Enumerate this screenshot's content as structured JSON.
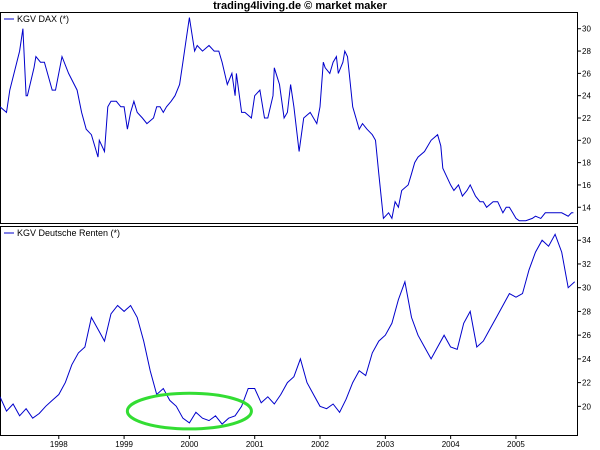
{
  "title": "trading4living.de © market maker",
  "colors": {
    "series_line": "#0000cc",
    "frame": "#000000",
    "highlight": "#33dd33",
    "background": "#ffffff"
  },
  "chart_data": [
    {
      "type": "line",
      "name": "top-panel",
      "legend": "KGV DAX (*)",
      "legend_position": "top-left",
      "ylim": [
        12.5,
        31.5
      ],
      "yticks": [
        14,
        16,
        18,
        20,
        22,
        24,
        26,
        28,
        30
      ],
      "xlim": [
        1997.1,
        2005.95
      ],
      "grid": false,
      "series": [
        {
          "x": [
            1997.1,
            1997.2,
            1997.25,
            1997.4,
            1997.45,
            1997.5,
            1997.52,
            1997.62,
            1997.65,
            1997.72,
            1997.78,
            1997.9,
            1997.95,
            1998.05,
            1998.15,
            1998.28,
            1998.35,
            1998.42,
            1998.5,
            1998.55,
            1998.6,
            1998.62,
            1998.7,
            1998.75,
            1998.8,
            1998.88,
            1998.95,
            1999.0,
            1999.05,
            1999.1,
            1999.15,
            1999.2,
            1999.28,
            1999.35,
            1999.45,
            1999.5,
            1999.55,
            1999.6,
            1999.65,
            1999.72,
            1999.78,
            1999.85,
            1999.9,
            1999.95,
            2000.0,
            2000.08,
            2000.12,
            2000.2,
            2000.3,
            2000.38,
            2000.45,
            2000.5,
            2000.58,
            2000.65,
            2000.7,
            2000.72,
            2000.8,
            2000.85,
            2000.95,
            2001.0,
            2001.08,
            2001.15,
            2001.2,
            2001.28,
            2001.3,
            2001.38,
            2001.45,
            2001.5,
            2001.55,
            2001.6,
            2001.68,
            2001.75,
            2001.85,
            2001.95,
            2002.0,
            2002.05,
            2002.08,
            2002.15,
            2002.2,
            2002.25,
            2002.28,
            2002.35,
            2002.38,
            2002.42,
            2002.5,
            2002.6,
            2002.65,
            2002.72,
            2002.8,
            2002.85,
            2002.9,
            2002.97,
            2003.05,
            2003.1,
            2003.15,
            2003.2,
            2003.25,
            2003.35,
            2003.4,
            2003.45,
            2003.5,
            2003.6,
            2003.7,
            2003.8,
            2003.85,
            2003.88,
            2003.92,
            2004.0,
            2004.05,
            2004.12,
            2004.18,
            2004.25,
            2004.3,
            2004.38,
            2004.45,
            2004.5,
            2004.55,
            2004.65,
            2004.72,
            2004.8,
            2004.85,
            2004.9,
            2004.95,
            2005.0,
            2005.05,
            2005.1,
            2005.15,
            2005.25,
            2005.3,
            2005.38,
            2005.45,
            2005.55,
            2005.62,
            2005.7,
            2005.8,
            2005.85,
            2005.88
          ],
          "y": [
            23,
            22.5,
            24.5,
            28,
            30,
            24,
            24,
            26.5,
            27.5,
            27,
            27,
            24.5,
            24.5,
            27.5,
            26,
            24.5,
            22.5,
            21,
            20.5,
            19.5,
            18.5,
            20,
            19,
            23,
            23.5,
            23.5,
            23,
            23,
            21,
            22.5,
            23.5,
            22.5,
            22,
            21.5,
            22,
            23,
            23,
            22.5,
            23,
            23.5,
            24,
            25,
            27,
            29,
            31,
            28,
            28.5,
            28,
            28.5,
            28,
            28,
            27,
            25,
            26,
            24,
            26,
            22.5,
            22.5,
            22,
            24,
            24.5,
            22,
            22,
            24,
            26.5,
            25,
            22,
            22.5,
            25,
            23,
            19,
            22,
            22.5,
            21.5,
            23,
            27,
            26.5,
            26,
            27,
            27.5,
            26,
            27,
            28,
            27.5,
            23,
            21,
            21.5,
            21,
            20.5,
            20,
            17,
            13,
            13.5,
            13,
            14.5,
            14,
            15.5,
            16,
            17,
            18,
            18.5,
            19,
            20,
            20.5,
            19.5,
            17.5,
            17,
            16,
            15.5,
            16,
            15,
            15.5,
            16,
            15,
            14.5,
            14.5,
            14,
            14.5,
            14.5,
            13.5,
            14,
            14,
            13.5,
            13,
            12.8,
            12.8,
            12.8,
            13,
            13.2,
            13,
            13.5,
            13.5,
            13.5,
            13.5,
            13.2,
            13.5,
            13.5
          ]
        }
      ]
    },
    {
      "type": "line",
      "name": "bottom-panel",
      "legend": "KGV Deutsche Renten (*)",
      "legend_position": "top-left",
      "ylim": [
        17.5,
        35.2
      ],
      "yticks": [
        20,
        22,
        24,
        26,
        28,
        30,
        32,
        34
      ],
      "xlim": [
        1997.1,
        2005.95
      ],
      "xticks": [
        "1998",
        "1999",
        "2000",
        "2001",
        "2002",
        "2003",
        "2004",
        "2005"
      ],
      "xtick_values": [
        1998,
        1999,
        2000,
        2001,
        2002,
        2003,
        2004,
        2005
      ],
      "grid": false,
      "highlight_ellipse": {
        "x_center": 2000.0,
        "y_center": 19.6,
        "x_radius": 0.95,
        "y_radius": 1.5
      },
      "series": [
        {
          "x": [
            1997.1,
            1997.2,
            1997.3,
            1997.4,
            1997.5,
            1997.6,
            1997.7,
            1997.8,
            1997.9,
            1998.0,
            1998.1,
            1998.2,
            1998.3,
            1998.4,
            1998.5,
            1998.6,
            1998.7,
            1998.8,
            1998.9,
            1999.0,
            1999.1,
            1999.2,
            1999.3,
            1999.4,
            1999.5,
            1999.6,
            1999.7,
            1999.8,
            1999.9,
            2000.0,
            2000.1,
            2000.2,
            2000.3,
            2000.4,
            2000.5,
            2000.6,
            2000.7,
            2000.8,
            2000.9,
            2001.0,
            2001.1,
            2001.2,
            2001.3,
            2001.4,
            2001.5,
            2001.6,
            2001.7,
            2001.8,
            2001.9,
            2002.0,
            2002.1,
            2002.2,
            2002.3,
            2002.4,
            2002.5,
            2002.6,
            2002.7,
            2002.8,
            2002.9,
            2003.0,
            2003.1,
            2003.2,
            2003.3,
            2003.4,
            2003.5,
            2003.6,
            2003.7,
            2003.8,
            2003.9,
            2004.0,
            2004.1,
            2004.2,
            2004.3,
            2004.4,
            2004.5,
            2004.6,
            2004.7,
            2004.8,
            2004.9,
            2005.0,
            2005.1,
            2005.2,
            2005.3,
            2005.4,
            2005.5,
            2005.6,
            2005.7,
            2005.8,
            2005.9
          ],
          "y": [
            20.8,
            19.6,
            20.2,
            19.2,
            19.8,
            19.0,
            19.4,
            20.0,
            20.5,
            21.0,
            22.0,
            23.5,
            24.5,
            25.0,
            27.5,
            26.5,
            25.5,
            27.8,
            28.5,
            28.0,
            28.5,
            27.5,
            25.5,
            23.0,
            21.0,
            21.5,
            20.5,
            20.0,
            19.0,
            18.6,
            19.5,
            19.0,
            18.8,
            19.2,
            18.5,
            19.0,
            19.2,
            20.0,
            21.5,
            21.5,
            20.3,
            20.8,
            20.2,
            21.0,
            22.0,
            22.5,
            24.0,
            22.0,
            21.0,
            20.0,
            19.8,
            20.2,
            19.5,
            20.6,
            22.0,
            23.0,
            22.6,
            24.5,
            25.5,
            26.0,
            27.0,
            29.0,
            30.5,
            27.5,
            26.0,
            25.0,
            24.0,
            25.0,
            26.0,
            25.0,
            24.8,
            27.0,
            28.0,
            25.0,
            25.5,
            26.5,
            27.5,
            28.5,
            29.5,
            29.2,
            29.5,
            31.5,
            33.0,
            34.0,
            33.5,
            34.5,
            33.0,
            30.0,
            30.5
          ]
        }
      ]
    }
  ]
}
